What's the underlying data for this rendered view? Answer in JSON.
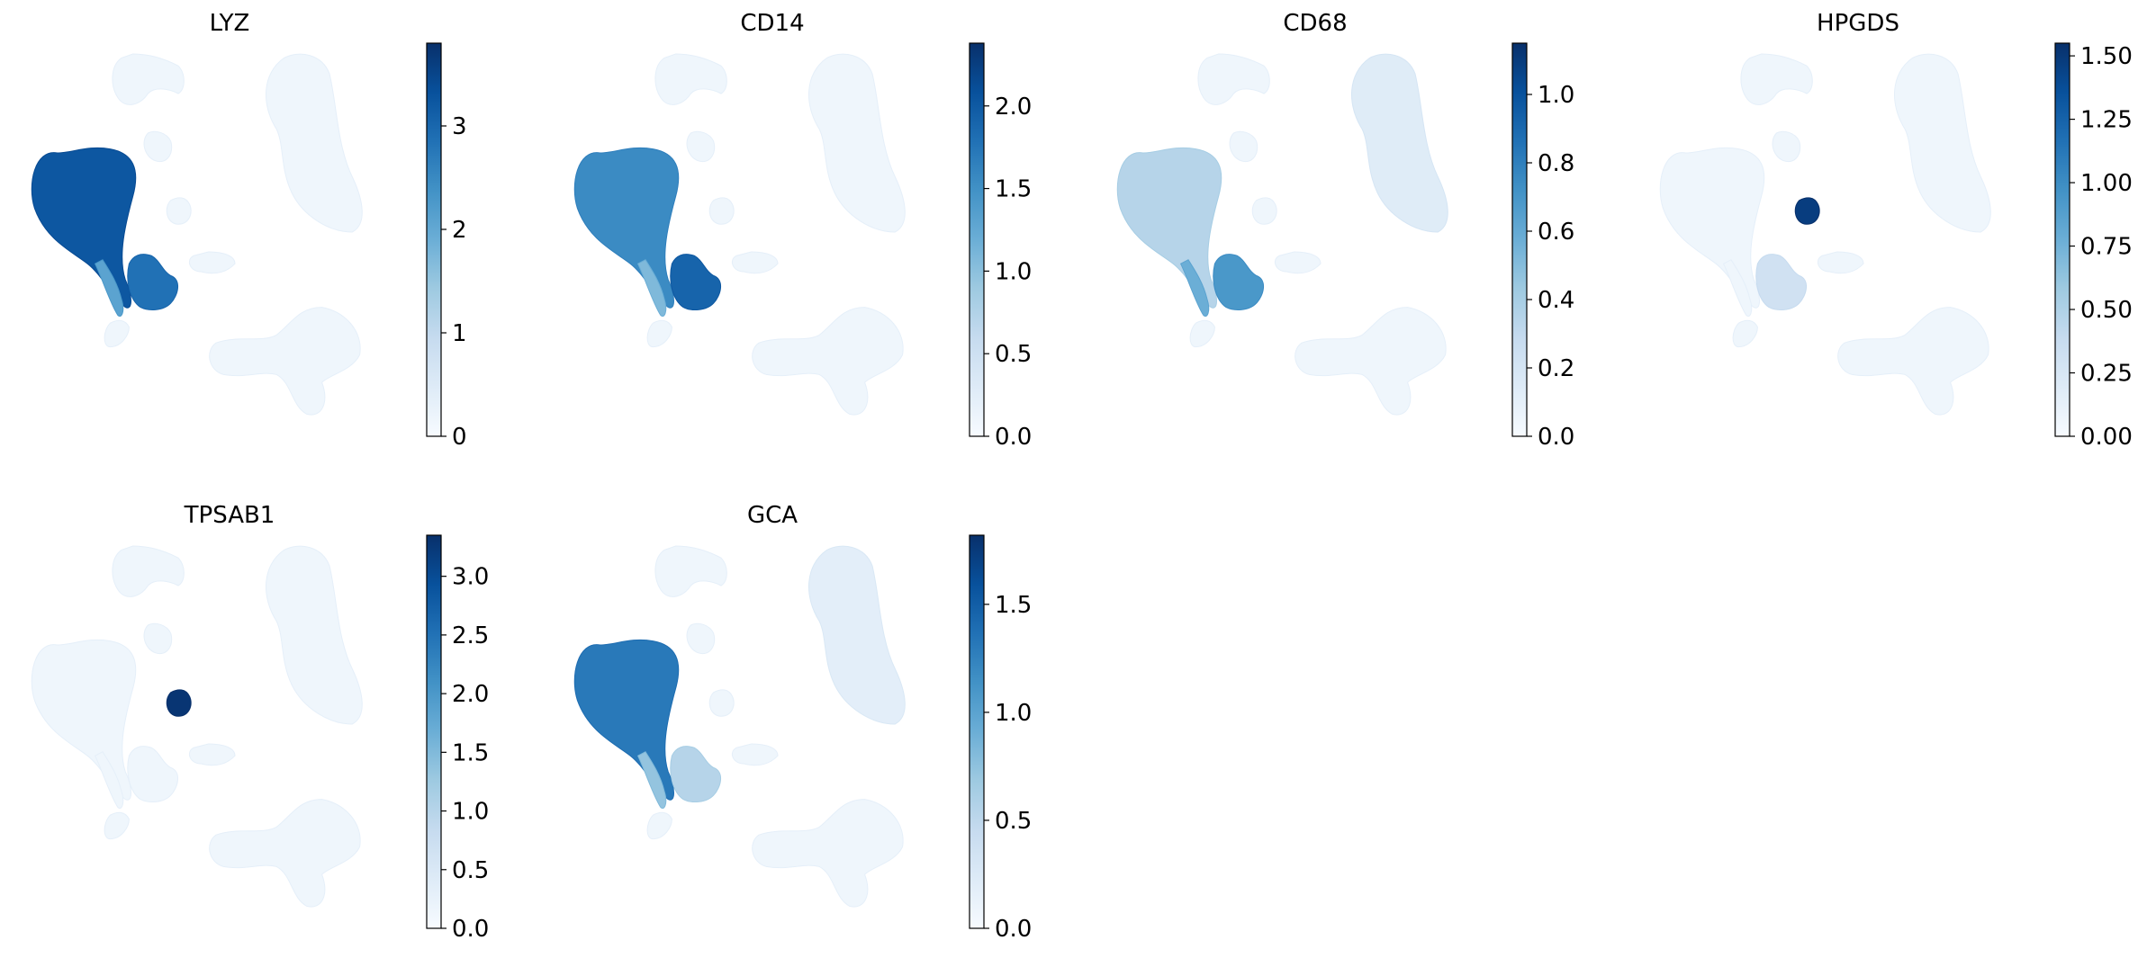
{
  "chart_data": [
    {
      "type": "scatter",
      "title": "LYZ",
      "colormap": "Blues",
      "colorbar": {
        "min": 0,
        "max": 3.8,
        "ticks": [
          0,
          1,
          2,
          3
        ],
        "tick_labels": [
          "0",
          "1",
          "2",
          "3"
        ]
      },
      "high_expression_clusters": [
        {
          "cluster": "left-large-lobe",
          "level": 0.85
        },
        {
          "cluster": "left-lobe-stem",
          "level": 0.55
        },
        {
          "cluster": "center-blob",
          "level": 0.75
        }
      ]
    },
    {
      "type": "scatter",
      "title": "CD14",
      "colormap": "Blues",
      "colorbar": {
        "min": 0,
        "max": 2.38,
        "ticks": [
          0,
          0.5,
          1,
          1.5,
          2
        ],
        "tick_labels": [
          "0.0",
          "0.5",
          "1.0",
          "1.5",
          "2.0"
        ]
      },
      "high_expression_clusters": [
        {
          "cluster": "left-large-lobe",
          "level": 0.65
        },
        {
          "cluster": "left-lobe-stem",
          "level": 0.45
        },
        {
          "cluster": "center-blob",
          "level": 0.8
        }
      ]
    },
    {
      "type": "scatter",
      "title": "CD68",
      "colormap": "Blues",
      "colorbar": {
        "min": 0,
        "max": 1.15,
        "ticks": [
          0,
          0.2,
          0.4,
          0.6,
          0.8,
          1.0
        ],
        "tick_labels": [
          "0.0",
          "0.2",
          "0.4",
          "0.6",
          "0.8",
          "1.0"
        ]
      },
      "high_expression_clusters": [
        {
          "cluster": "left-large-lobe",
          "level": 0.3
        },
        {
          "cluster": "left-lobe-stem",
          "level": 0.5
        },
        {
          "cluster": "center-blob",
          "level": 0.6
        },
        {
          "cluster": "right-large-lobe",
          "level": 0.12
        }
      ]
    },
    {
      "type": "scatter",
      "title": "HPGDS",
      "colormap": "Blues",
      "colorbar": {
        "min": 0,
        "max": 1.55,
        "ticks": [
          0,
          0.25,
          0.5,
          0.75,
          1.0,
          1.25,
          1.5
        ],
        "tick_labels": [
          "0.00",
          "0.25",
          "0.50",
          "0.75",
          "1.00",
          "1.25",
          "1.50"
        ]
      },
      "high_expression_clusters": [
        {
          "cluster": "small-center-cluster",
          "level": 0.95
        },
        {
          "cluster": "center-blob",
          "level": 0.2
        }
      ]
    },
    {
      "type": "scatter",
      "title": "TPSAB1",
      "colormap": "Blues",
      "colorbar": {
        "min": 0,
        "max": 3.35,
        "ticks": [
          0,
          0.5,
          1,
          1.5,
          2,
          2.5,
          3
        ],
        "tick_labels": [
          "0.0",
          "0.5",
          "1.0",
          "1.5",
          "2.0",
          "2.5",
          "3.0"
        ]
      },
      "high_expression_clusters": [
        {
          "cluster": "small-center-cluster",
          "level": 0.98
        }
      ]
    },
    {
      "type": "scatter",
      "title": "GCA",
      "colormap": "Blues",
      "colorbar": {
        "min": 0,
        "max": 1.82,
        "ticks": [
          0,
          0.5,
          1,
          1.5
        ],
        "tick_labels": [
          "0.0",
          "0.5",
          "1.0",
          "1.5"
        ]
      },
      "high_expression_clusters": [
        {
          "cluster": "left-large-lobe",
          "level": 0.72
        },
        {
          "cluster": "left-lobe-stem",
          "level": 0.4
        },
        {
          "cluster": "center-blob",
          "level": 0.3
        },
        {
          "cluster": "right-large-lobe",
          "level": 0.1
        }
      ]
    }
  ]
}
